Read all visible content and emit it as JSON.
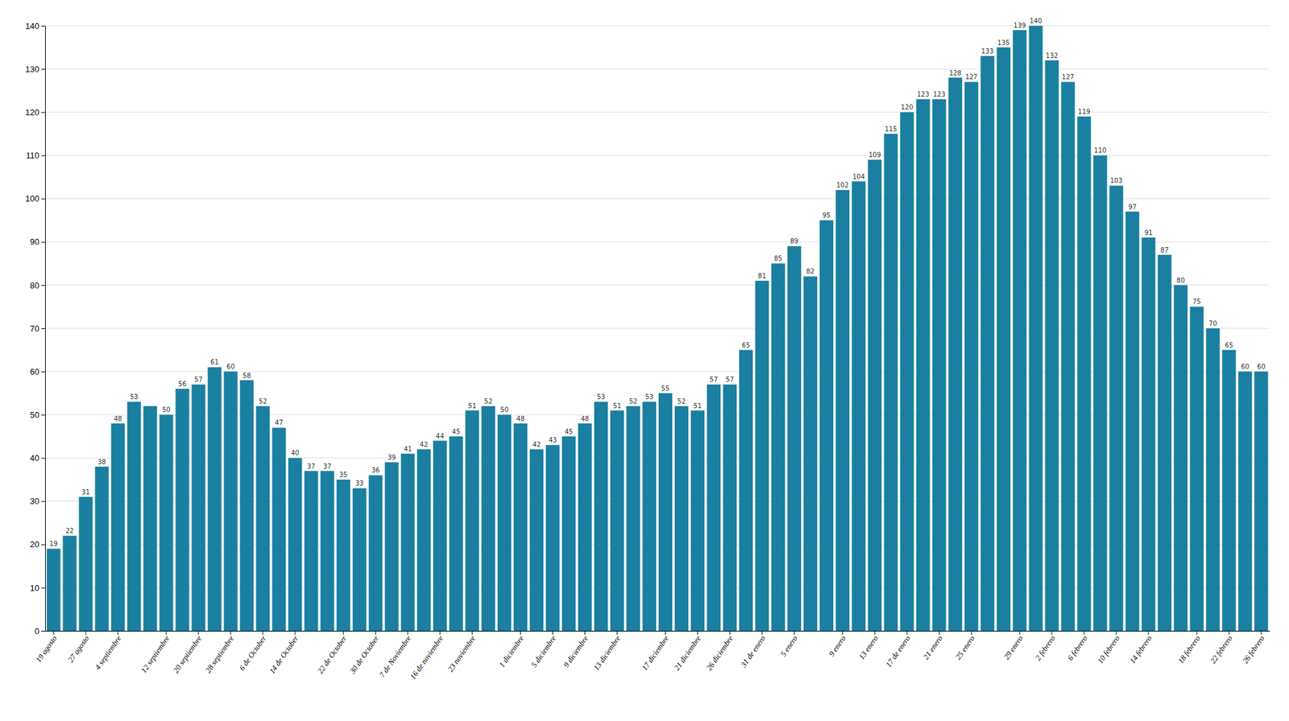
{
  "chart_data": {
    "type": "bar",
    "categories": [
      "19 agosto",
      null,
      "27 agosto",
      null,
      "4 septiembre",
      null,
      null,
      "12 septiembre",
      null,
      "20 septiembre",
      null,
      "28 septiembre",
      null,
      "6 de October",
      null,
      "14 de October",
      null,
      null,
      "22 de October",
      null,
      "30 de October",
      null,
      "7 de Noviembre",
      null,
      "16 de noviembre",
      null,
      "23 noviembre",
      null,
      null,
      "1 diciembre",
      null,
      "5 diciembre",
      null,
      "9 diciembre",
      null,
      "13 diciembre",
      null,
      null,
      "17 diciembre",
      null,
      "21 diciembre",
      null,
      "26 diciembre",
      null,
      "31 de enero",
      null,
      "5 enero",
      null,
      null,
      "9 enero",
      null,
      "13 enero",
      null,
      "17 de enero",
      null,
      "21 enero",
      null,
      "25 enero",
      null,
      null,
      "29 enero",
      null,
      "2 febrero",
      null,
      "6 febrero",
      null,
      "10 febrero",
      null,
      "14 febrero",
      null,
      null,
      "18 febrero",
      null,
      "22 febrero",
      null,
      "26 febrero"
    ],
    "values": [
      19,
      22,
      31,
      38,
      48,
      53,
      52,
      50,
      56,
      57,
      61,
      60,
      58,
      52,
      47,
      40,
      37,
      37,
      35,
      33,
      36,
      39,
      41,
      42,
      44,
      45,
      51,
      52,
      50,
      48,
      42,
      43,
      45,
      48,
      53,
      51,
      52,
      53,
      55,
      52,
      51,
      57,
      57,
      65,
      81,
      85,
      89,
      82,
      95,
      102,
      104,
      109,
      115,
      120,
      123,
      123,
      128,
      127,
      133,
      135,
      139,
      140,
      132,
      127,
      119,
      110,
      103,
      97,
      91,
      87,
      80,
      75,
      70,
      65,
      60,
      60
    ],
    "value_labels": [
      "19",
      "22",
      "31",
      "38",
      "48",
      "53",
      null,
      "50",
      "56",
      "57",
      "61",
      "60",
      "58",
      "52",
      "47",
      "40",
      "37",
      "37",
      "35",
      "33",
      "36",
      "39",
      "41",
      "42",
      "44",
      "45",
      "51",
      "52",
      "50",
      "48",
      "42",
      "43",
      "45",
      "48",
      "53",
      "51",
      "52",
      "53",
      "55",
      "52",
      "51",
      "57",
      "57",
      "65",
      "81",
      "85",
      "89",
      "82",
      "95",
      "102",
      "104",
      "109",
      "115",
      "120",
      "123",
      "123",
      "128",
      "127",
      "133",
      "135",
      "139",
      "140",
      "132",
      "127",
      "119",
      "110",
      "103",
      "97",
      "91",
      "87",
      "80",
      "75",
      "70",
      "65",
      "60",
      "60"
    ],
    "data_labels": true,
    "color": "#1a7fa0",
    "ylim": [
      0,
      140
    ],
    "yticks": [
      0,
      10,
      20,
      30,
      40,
      50,
      60,
      70,
      80,
      90,
      100,
      110,
      120,
      130,
      140
    ],
    "grid": true
  }
}
